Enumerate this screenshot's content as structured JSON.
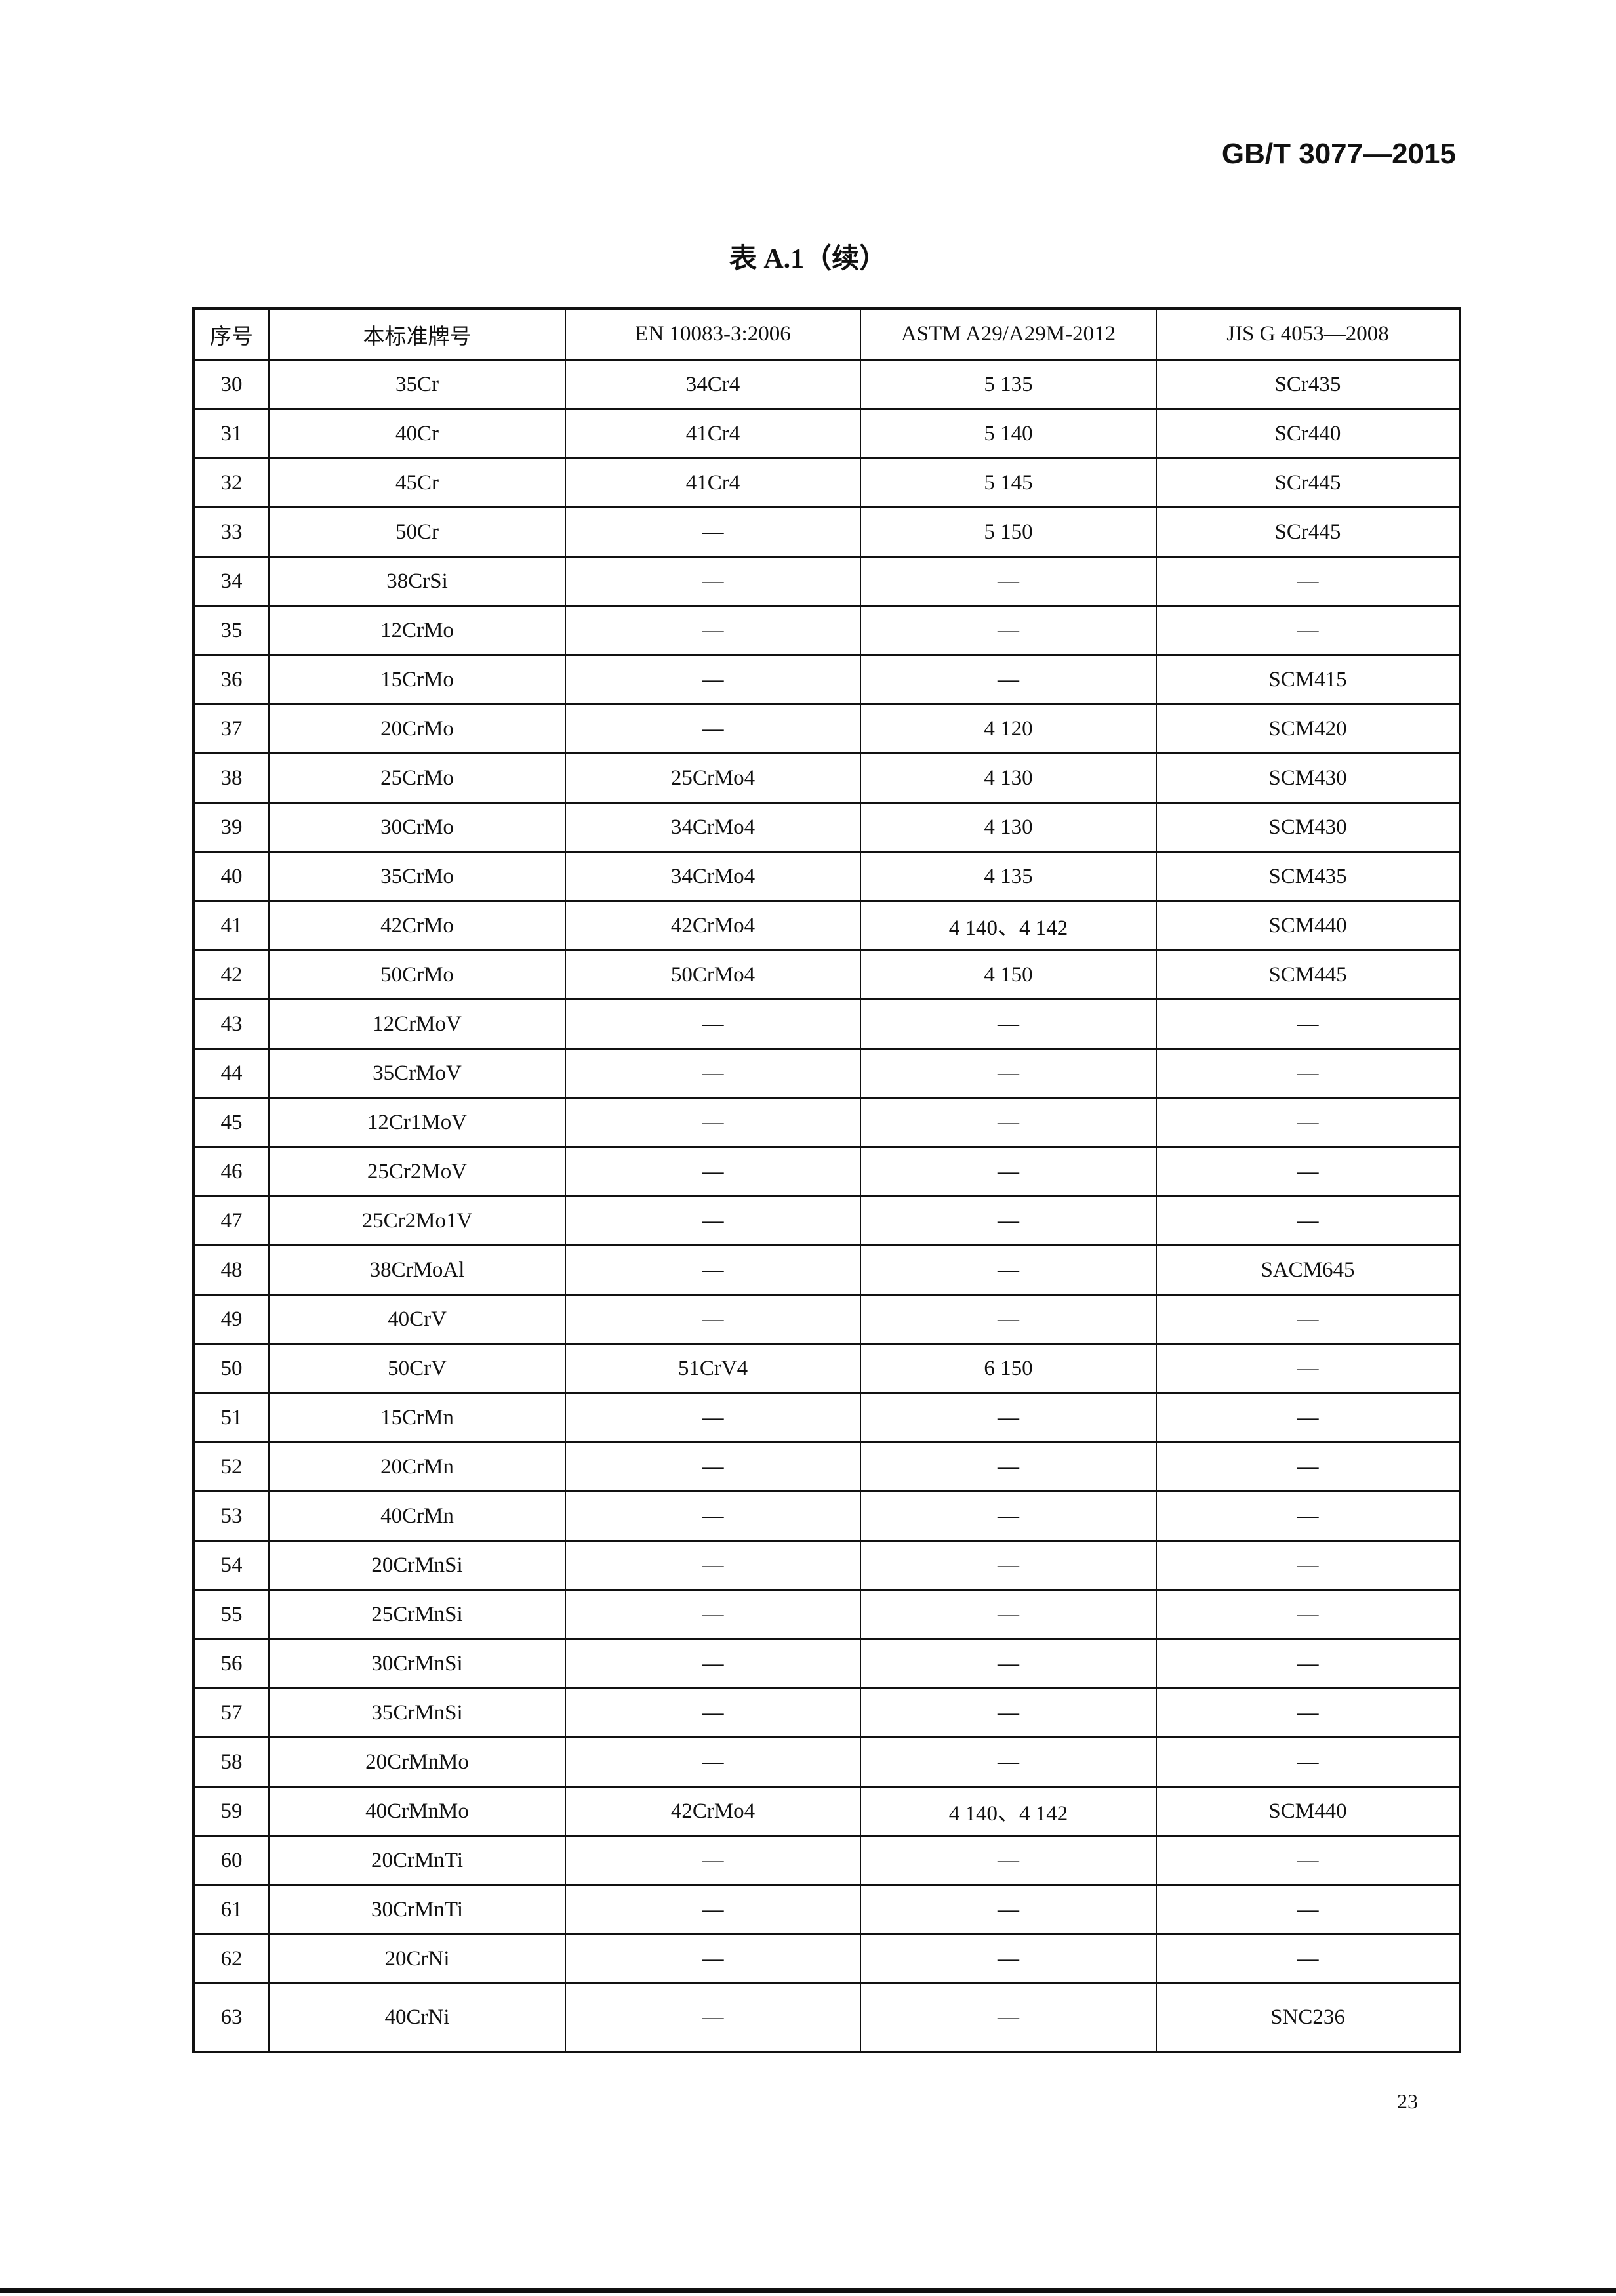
{
  "header": {
    "standard_no": "GB/T 3077—2015"
  },
  "title": "表 A.1（续）",
  "table": {
    "columns": [
      "序号",
      "本标准牌号",
      "EN 10083-3:2006",
      "ASTM A29/A29M-2012",
      "JIS G 4053—2008"
    ],
    "rows": [
      [
        "30",
        "35Cr",
        "34Cr4",
        "5 135",
        "SCr435"
      ],
      [
        "31",
        "40Cr",
        "41Cr4",
        "5 140",
        "SCr440"
      ],
      [
        "32",
        "45Cr",
        "41Cr4",
        "5 145",
        "SCr445"
      ],
      [
        "33",
        "50Cr",
        "—",
        "5 150",
        "SCr445"
      ],
      [
        "34",
        "38CrSi",
        "—",
        "—",
        "—"
      ],
      [
        "35",
        "12CrMo",
        "—",
        "—",
        "—"
      ],
      [
        "36",
        "15CrMo",
        "—",
        "—",
        "SCM415"
      ],
      [
        "37",
        "20CrMo",
        "—",
        "4 120",
        "SCM420"
      ],
      [
        "38",
        "25CrMo",
        "25CrMo4",
        "4 130",
        "SCM430"
      ],
      [
        "39",
        "30CrMo",
        "34CrMo4",
        "4 130",
        "SCM430"
      ],
      [
        "40",
        "35CrMo",
        "34CrMo4",
        "4 135",
        "SCM435"
      ],
      [
        "41",
        "42CrMo",
        "42CrMo4",
        "4 140、4 142",
        "SCM440"
      ],
      [
        "42",
        "50CrMo",
        "50CrMo4",
        "4 150",
        "SCM445"
      ],
      [
        "43",
        "12CrMoV",
        "—",
        "—",
        "—"
      ],
      [
        "44",
        "35CrMoV",
        "—",
        "—",
        "—"
      ],
      [
        "45",
        "12Cr1MoV",
        "—",
        "—",
        "—"
      ],
      [
        "46",
        "25Cr2MoV",
        "—",
        "—",
        "—"
      ],
      [
        "47",
        "25Cr2Mo1V",
        "—",
        "—",
        "—"
      ],
      [
        "48",
        "38CrMoAl",
        "—",
        "—",
        "SACM645"
      ],
      [
        "49",
        "40CrV",
        "—",
        "—",
        "—"
      ],
      [
        "50",
        "50CrV",
        "51CrV4",
        "6 150",
        "—"
      ],
      [
        "51",
        "15CrMn",
        "—",
        "—",
        "—"
      ],
      [
        "52",
        "20CrMn",
        "—",
        "—",
        "—"
      ],
      [
        "53",
        "40CrMn",
        "—",
        "—",
        "—"
      ],
      [
        "54",
        "20CrMnSi",
        "—",
        "—",
        "—"
      ],
      [
        "55",
        "25CrMnSi",
        "—",
        "—",
        "—"
      ],
      [
        "56",
        "30CrMnSi",
        "—",
        "—",
        "—"
      ],
      [
        "57",
        "35CrMnSi",
        "—",
        "—",
        "—"
      ],
      [
        "58",
        "20CrMnMo",
        "—",
        "—",
        "—"
      ],
      [
        "59",
        "40CrMnMo",
        "42CrMo4",
        "4 140、4 142",
        "SCM440"
      ],
      [
        "60",
        "20CrMnTi",
        "—",
        "—",
        "—"
      ],
      [
        "61",
        "30CrMnTi",
        "—",
        "—",
        "—"
      ],
      [
        "62",
        "20CrNi",
        "—",
        "—",
        "—"
      ],
      [
        "63",
        "40CrNi",
        "—",
        "—",
        "SNC236"
      ]
    ]
  },
  "page_number": "23"
}
